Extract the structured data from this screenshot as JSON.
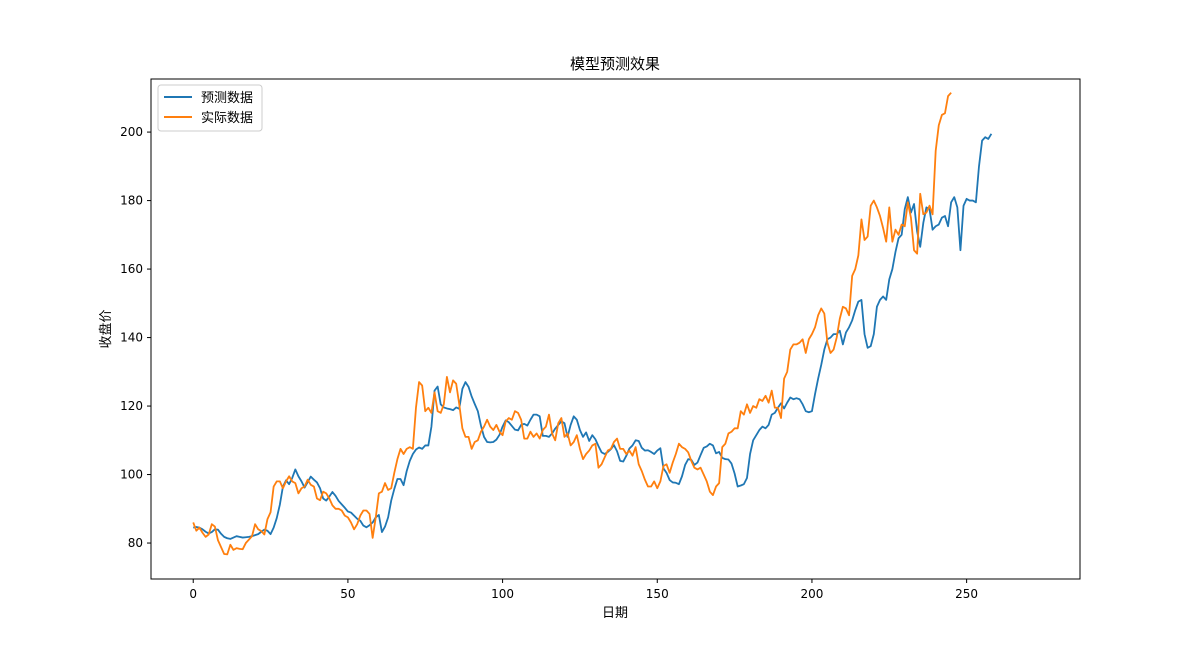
{
  "chart_data": {
    "type": "line",
    "title": "模型预测效果",
    "xlabel": "日期",
    "ylabel": "收盘价",
    "xlim": [
      -13.65,
      286.65
    ],
    "ylim": [
      69.5,
      215.5
    ],
    "xticks": [
      0,
      50,
      100,
      150,
      200,
      250
    ],
    "yticks": [
      80,
      100,
      120,
      140,
      160,
      180,
      200
    ],
    "grid": false,
    "legend_position": "top-left",
    "series": [
      {
        "name": "预测数据",
        "color": "#1f77b4",
        "x_start": 0,
        "values": [
          84.5,
          84.7,
          84.5,
          84.0,
          83.3,
          82.8,
          83.2,
          84.0,
          83.9,
          82.7,
          81.8,
          81.4,
          81.2,
          81.6,
          82.0,
          81.8,
          81.6,
          81.7,
          81.8,
          82.0,
          82.3,
          82.6,
          83.3,
          83.9,
          83.6,
          82.6,
          84.5,
          87.3,
          91.2,
          96.5,
          98.3,
          97.2,
          99.0,
          101.5,
          99.5,
          98.0,
          96.2,
          97.8,
          99.4,
          98.5,
          97.7,
          96.0,
          93.0,
          92.4,
          93.6,
          94.9,
          93.8,
          92.3,
          91.3,
          90.3,
          89.2,
          88.9,
          88.0,
          87.1,
          86.5,
          85.1,
          84.6,
          85.2,
          86.0,
          87.5,
          88.2,
          83.2,
          84.8,
          87.5,
          92.4,
          95.8,
          98.7,
          98.7,
          96.9,
          101.0,
          104.0,
          106.0,
          107.3,
          107.9,
          107.5,
          108.5,
          108.5,
          114.0,
          124.5,
          125.7,
          120.5,
          119.6,
          119.3,
          119.1,
          118.8,
          119.6,
          119.2,
          125.0,
          127.0,
          125.6,
          122.8,
          120.6,
          118.5,
          114.3,
          111.0,
          109.5,
          109.4,
          109.5,
          110.2,
          111.6,
          114.0,
          115.8,
          115.3,
          114.2,
          113.1,
          112.9,
          114.5,
          114.8,
          114.3,
          116.0,
          117.5,
          117.5,
          117.0,
          111.3,
          111.3,
          111.0,
          112.0,
          113.4,
          114.5,
          115.5,
          115.0,
          111.0,
          114.5,
          117.0,
          116.0,
          113.0,
          111.0,
          112.3,
          109.8,
          111.5,
          110.3,
          108.3,
          106.5,
          106.0,
          106.6,
          107.4,
          108.6,
          106.8,
          104.0,
          103.8,
          105.5,
          107.6,
          108.5,
          110.0,
          109.8,
          107.8,
          107.0,
          107.1,
          106.6,
          106.0,
          107.0,
          107.7,
          101.8,
          100.5,
          98.4,
          97.7,
          97.6,
          97.2,
          99.5,
          102.8,
          104.5,
          104.3,
          102.8,
          103.5,
          105.7,
          107.8,
          108.2,
          109.0,
          108.5,
          106.2,
          106.6,
          104.9,
          104.5,
          104.4,
          103.2,
          100.3,
          96.5,
          96.8,
          97.2,
          99.0,
          106.0,
          110.0,
          111.5,
          113.0,
          114.0,
          113.5,
          114.5,
          117.5,
          118.0,
          119.5,
          120.8,
          119.3,
          121.0,
          122.5,
          122.0,
          122.3,
          122.0,
          120.5,
          118.5,
          118.2,
          118.5,
          123.5,
          128.0,
          132.0,
          136.5,
          139.5,
          140.0,
          141.0,
          141.0,
          142.0,
          138.0,
          141.5,
          143.0,
          145.0,
          148.0,
          150.5,
          151.0,
          141.0,
          137.0,
          137.5,
          141.0,
          149.0,
          151.0,
          152.0,
          151.0,
          157.0,
          160.0,
          165.0,
          169.0,
          170.0,
          177.5,
          181.0,
          176.5,
          179.0,
          171.0,
          166.5,
          173.5,
          178.0,
          177.5,
          171.5,
          172.5,
          173.0,
          175.0,
          175.5,
          172.5,
          179.5,
          181.0,
          178.0,
          165.5,
          178.5,
          180.5,
          180.0,
          180.0,
          179.5,
          190.0,
          197.5,
          198.5,
          198.0,
          199.5
        ]
      },
      {
        "name": "实际数据",
        "color": "#ff7f0e",
        "x_start": 0,
        "values": [
          86.0,
          83.6,
          84.5,
          83.0,
          81.8,
          82.5,
          85.5,
          84.8,
          80.8,
          78.8,
          76.8,
          76.7,
          79.5,
          78.0,
          78.5,
          78.3,
          78.2,
          80.0,
          81.0,
          82.0,
          85.5,
          84.0,
          83.5,
          82.5,
          87.0,
          89.0,
          96.5,
          98.0,
          98.0,
          96.0,
          98.0,
          99.5,
          98.0,
          97.5,
          94.5,
          96.0,
          96.5,
          98.5,
          97.0,
          96.5,
          93.0,
          92.5,
          95.0,
          94.5,
          93.0,
          91.0,
          90.0,
          90.0,
          89.5,
          88.0,
          87.5,
          86.0,
          84.0,
          85.5,
          88.0,
          89.5,
          89.5,
          88.5,
          81.5,
          87.5,
          94.5,
          95.0,
          97.5,
          95.5,
          96.0,
          100.5,
          104.5,
          107.5,
          106.0,
          107.5,
          108.0,
          107.5,
          119.5,
          127.0,
          126.0,
          118.5,
          119.5,
          118.0,
          124.0,
          118.5,
          118.0,
          120.5,
          128.5,
          124.0,
          127.5,
          126.5,
          120.5,
          113.5,
          111.0,
          111.0,
          107.5,
          109.5,
          110.0,
          112.5,
          114.0,
          116.0,
          114.0,
          113.0,
          114.5,
          112.5,
          111.5,
          115.5,
          116.5,
          116.0,
          118.5,
          118.0,
          116.0,
          110.5,
          110.5,
          112.5,
          111.0,
          112.0,
          110.5,
          113.0,
          114.0,
          117.5,
          112.0,
          110.0,
          115.0,
          116.5,
          111.0,
          112.0,
          108.5,
          109.5,
          111.5,
          107.5,
          104.5,
          106.0,
          107.0,
          108.5,
          109.0,
          102.0,
          103.0,
          105.0,
          107.0,
          107.5,
          109.5,
          110.5,
          107.5,
          107.5,
          106.0,
          107.0,
          105.5,
          108.0,
          103.0,
          101.0,
          98.5,
          96.5,
          96.5,
          98.0,
          96.0,
          98.0,
          102.5,
          103.0,
          100.5,
          103.5,
          106.0,
          109.0,
          108.0,
          107.5,
          106.5,
          104.0,
          102.0,
          101.5,
          102.0,
          100.0,
          98.0,
          95.0,
          94.0,
          96.5,
          97.5,
          108.0,
          109.0,
          112.0,
          112.5,
          113.5,
          113.5,
          118.5,
          117.5,
          120.5,
          118.0,
          120.0,
          119.5,
          122.0,
          121.5,
          123.0,
          121.0,
          124.5,
          119.5,
          119.5,
          116.5,
          128.0,
          130.0,
          136.5,
          138.0,
          138.0,
          138.5,
          139.5,
          135.5,
          139.5,
          141.0,
          143.0,
          146.5,
          148.5,
          147.0,
          138.5,
          135.5,
          136.5,
          140.0,
          145.5,
          149.0,
          148.5,
          146.5,
          158.0,
          160.0,
          164.0,
          174.5,
          168.5,
          169.5,
          178.5,
          180.0,
          178.0,
          175.5,
          172.0,
          168.0,
          178.0,
          168.0,
          171.5,
          170.0,
          173.0,
          172.5,
          179.5,
          175.0,
          165.5,
          164.5,
          182.0,
          176.0,
          176.5,
          178.5,
          176.0,
          194.5,
          202.0,
          205.0,
          205.5,
          210.5,
          211.5
        ]
      }
    ]
  }
}
